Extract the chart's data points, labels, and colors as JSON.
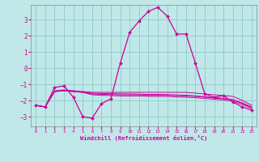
{
  "xlabel": "Windchill (Refroidissement éolien,°C)",
  "bg_color": "#c0e8e8",
  "grid_color": "#90c8c8",
  "line_color": "#cc0099",
  "xlim": [
    -0.5,
    23.5
  ],
  "ylim": [
    -3.6,
    3.9
  ],
  "yticks": [
    -3,
    -2,
    -1,
    0,
    1,
    2,
    3
  ],
  "xticks": [
    0,
    1,
    2,
    3,
    4,
    5,
    6,
    7,
    8,
    9,
    10,
    11,
    12,
    13,
    14,
    15,
    16,
    17,
    18,
    19,
    20,
    21,
    22,
    23
  ],
  "line1_x": [
    0,
    1,
    2,
    3,
    4,
    5,
    6,
    7,
    8,
    9,
    10,
    11,
    12,
    13,
    14,
    15,
    16,
    17,
    18,
    19,
    20,
    21,
    22,
    23
  ],
  "line1_y": [
    -2.3,
    -2.4,
    -1.2,
    -1.1,
    -1.8,
    -3.0,
    -3.1,
    -2.2,
    -1.9,
    0.3,
    2.2,
    2.9,
    3.5,
    3.75,
    3.2,
    2.1,
    2.1,
    0.3,
    -1.6,
    -1.8,
    -1.7,
    -2.1,
    -2.4,
    -2.6
  ],
  "line2_x": [
    0,
    1,
    2,
    3,
    4,
    5,
    6,
    7,
    8,
    9,
    10,
    11,
    12,
    13,
    14,
    15,
    16,
    17,
    18,
    19,
    20,
    21,
    22,
    23
  ],
  "line2_y": [
    -2.3,
    -2.4,
    -1.4,
    -1.35,
    -1.4,
    -1.45,
    -1.5,
    -1.5,
    -1.5,
    -1.5,
    -1.5,
    -1.5,
    -1.5,
    -1.5,
    -1.5,
    -1.5,
    -1.5,
    -1.55,
    -1.6,
    -1.65,
    -1.7,
    -1.75,
    -2.0,
    -2.3
  ],
  "line3_x": [
    0,
    1,
    2,
    3,
    4,
    5,
    6,
    7,
    8,
    9,
    10,
    11,
    12,
    13,
    14,
    15,
    16,
    17,
    18,
    19,
    20,
    21,
    22,
    23
  ],
  "line3_y": [
    -2.3,
    -2.4,
    -1.45,
    -1.4,
    -1.45,
    -1.5,
    -1.6,
    -1.62,
    -1.64,
    -1.65,
    -1.65,
    -1.65,
    -1.68,
    -1.68,
    -1.68,
    -1.7,
    -1.72,
    -1.75,
    -1.8,
    -1.85,
    -1.9,
    -1.95,
    -2.15,
    -2.4
  ],
  "line4_x": [
    0,
    1,
    2,
    3,
    4,
    5,
    6,
    7,
    8,
    9,
    10,
    11,
    12,
    13,
    14,
    15,
    16,
    17,
    18,
    19,
    20,
    21,
    22,
    23
  ],
  "line4_y": [
    -2.3,
    -2.4,
    -1.45,
    -1.4,
    -1.45,
    -1.5,
    -1.65,
    -1.68,
    -1.7,
    -1.72,
    -1.72,
    -1.72,
    -1.75,
    -1.75,
    -1.75,
    -1.78,
    -1.8,
    -1.83,
    -1.88,
    -1.92,
    -1.97,
    -2.05,
    -2.25,
    -2.5
  ],
  "line5_x": [
    0,
    1,
    2,
    3,
    4,
    5,
    6,
    7,
    8,
    9,
    10,
    11,
    12,
    13,
    14,
    15,
    16,
    17,
    18,
    19,
    20,
    21,
    22,
    23
  ],
  "line5_y": [
    -2.3,
    -2.4,
    -1.45,
    -1.38,
    -1.43,
    -1.48,
    -1.55,
    -1.57,
    -1.58,
    -1.59,
    -1.6,
    -1.61,
    -1.63,
    -1.63,
    -1.64,
    -1.66,
    -1.68,
    -1.72,
    -1.77,
    -1.82,
    -1.87,
    -1.97,
    -2.18,
    -2.45
  ]
}
